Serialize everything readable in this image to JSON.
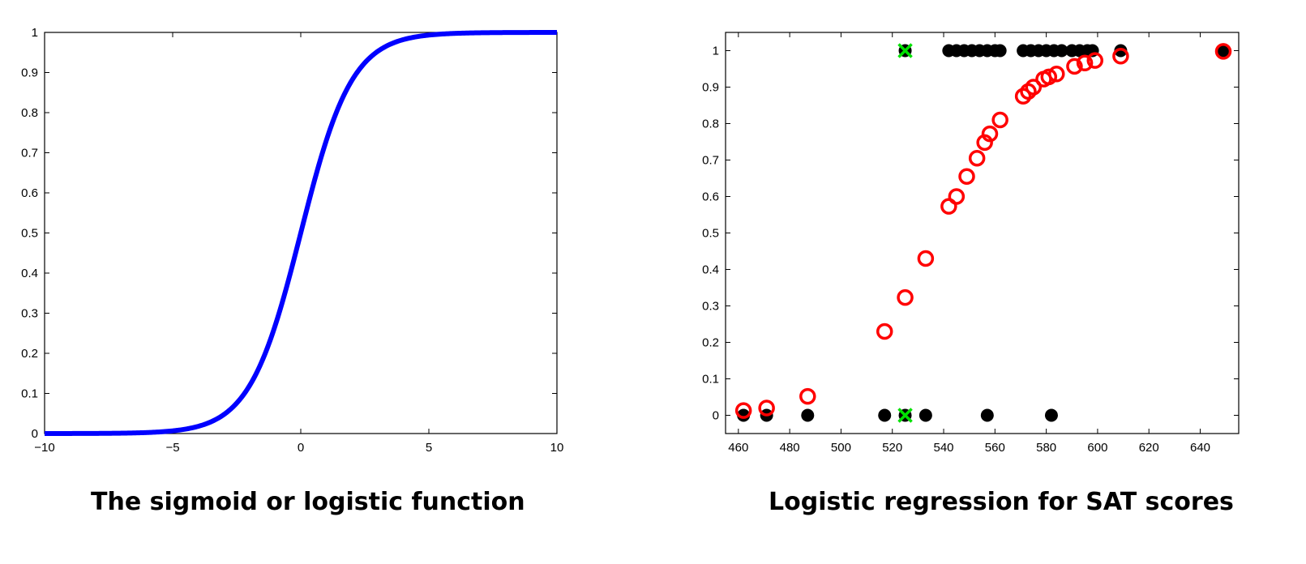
{
  "captions": {
    "left": "The sigmoid or logistic function",
    "right": "Logistic regression for SAT scores"
  },
  "colors": {
    "curve": "#0000ff",
    "observed": "#000000",
    "predicted": "#ff0000",
    "highlight": "#00e000"
  },
  "chart_data": [
    {
      "type": "line",
      "function": "sigmoid",
      "x": [
        -10,
        -9,
        -8,
        -7,
        -6,
        -5,
        -4,
        -3,
        -2,
        -1,
        0,
        1,
        2,
        3,
        4,
        5,
        6,
        7,
        8,
        9,
        10
      ],
      "series": [
        {
          "values": [
            4.54e-05,
            0.000123,
            0.000335,
            0.000911,
            0.00247,
            0.00669,
            0.018,
            0.0474,
            0.1192,
            0.2689,
            0.5,
            0.7311,
            0.8808,
            0.9526,
            0.982,
            0.9933,
            0.9975,
            0.9991,
            0.9997,
            0.9999,
            1.0
          ]
        }
      ],
      "xlim": [
        -10,
        10
      ],
      "ylim": [
        0,
        1
      ],
      "x_ticks": [
        "−10",
        "−5",
        "0",
        "5",
        "10"
      ],
      "y_ticks": [
        "0",
        "0.1",
        "0.2",
        "0.3",
        "0.4",
        "0.5",
        "0.6",
        "0.7",
        "0.8",
        "0.9",
        "1"
      ],
      "grid": false
    },
    {
      "type": "scatter",
      "xlim": [
        455,
        655
      ],
      "ylim": [
        -0.05,
        1.05
      ],
      "x_ticks": [
        "460",
        "480",
        "500",
        "520",
        "540",
        "560",
        "580",
        "600",
        "620",
        "640"
      ],
      "y_ticks": [
        "0",
        "0.1",
        "0.2",
        "0.3",
        "0.4",
        "0.5",
        "0.6",
        "0.7",
        "0.8",
        "0.9",
        "1"
      ],
      "grid": false,
      "series": [
        {
          "marker": "filled-dot",
          "points": [
            [
              462,
              0
            ],
            [
              471,
              0
            ],
            [
              487,
              0
            ],
            [
              517,
              0
            ],
            [
              533,
              0
            ],
            [
              557,
              0
            ],
            [
              582,
              0
            ],
            [
              542,
              1
            ],
            [
              545,
              1
            ],
            [
              548,
              1
            ],
            [
              551,
              1
            ],
            [
              554,
              1
            ],
            [
              557,
              1
            ],
            [
              560,
              1
            ],
            [
              562,
              1
            ],
            [
              571,
              1
            ],
            [
              574,
              1
            ],
            [
              577,
              1
            ],
            [
              580,
              1
            ],
            [
              583,
              1
            ],
            [
              586,
              1
            ],
            [
              590,
              1
            ],
            [
              593,
              1
            ],
            [
              596,
              1
            ],
            [
              598,
              1
            ],
            [
              609,
              1
            ],
            [
              649,
              1
            ]
          ]
        },
        {
          "marker": "open-circle",
          "points": [
            [
              462,
              0.013
            ],
            [
              471,
              0.02
            ],
            [
              487,
              0.052
            ],
            [
              517,
              0.23
            ],
            [
              525,
              0.323
            ],
            [
              533,
              0.43
            ],
            [
              542,
              0.573
            ],
            [
              545,
              0.6
            ],
            [
              549,
              0.655
            ],
            [
              553,
              0.705
            ],
            [
              556,
              0.748
            ],
            [
              558,
              0.772
            ],
            [
              562,
              0.81
            ],
            [
              571,
              0.875
            ],
            [
              573,
              0.888
            ],
            [
              575,
              0.9
            ],
            [
              579,
              0.922
            ],
            [
              581,
              0.928
            ],
            [
              584,
              0.936
            ],
            [
              591,
              0.957
            ],
            [
              595,
              0.966
            ],
            [
              599,
              0.973
            ],
            [
              609,
              0.985
            ],
            [
              649,
              0.998
            ]
          ]
        },
        {
          "marker": "x-cross",
          "points": [
            [
              525,
              0
            ],
            [
              525,
              1
            ]
          ]
        }
      ]
    }
  ]
}
